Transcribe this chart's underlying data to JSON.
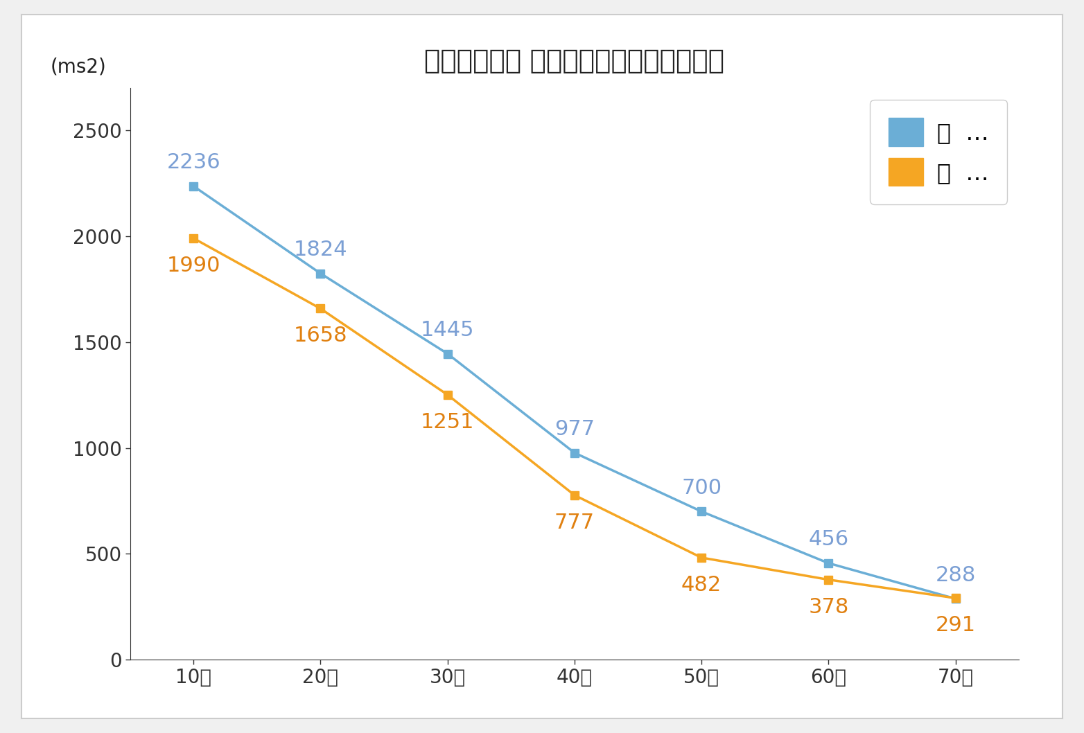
{
  "title": "自律神経機能 トータルパワーの加齢推移",
  "ylabel": "(ms2)",
  "categories": [
    "10代",
    "20代",
    "30代",
    "40代",
    "50代",
    "60代",
    "70代"
  ],
  "male_values": [
    2236,
    1824,
    1445,
    977,
    700,
    456,
    288
  ],
  "female_values": [
    1990,
    1658,
    1251,
    777,
    482,
    378,
    291
  ],
  "male_color": "#6baed6",
  "female_color": "#f5a623",
  "male_label_color": "#7b9fd4",
  "female_label_color": "#e08010",
  "background_color": "#f0f0f0",
  "plot_background": "#ffffff",
  "border_color": "#cccccc",
  "ylim": [
    0,
    2700
  ],
  "yticks": [
    0,
    500,
    1000,
    1500,
    2000,
    2500
  ],
  "title_fontsize": 28,
  "tick_fontsize": 20,
  "legend_fontsize": 24,
  "annot_fontsize": 22,
  "ylabel_fontsize": 20,
  "legend_male": "男  …",
  "legend_female": "女  …"
}
